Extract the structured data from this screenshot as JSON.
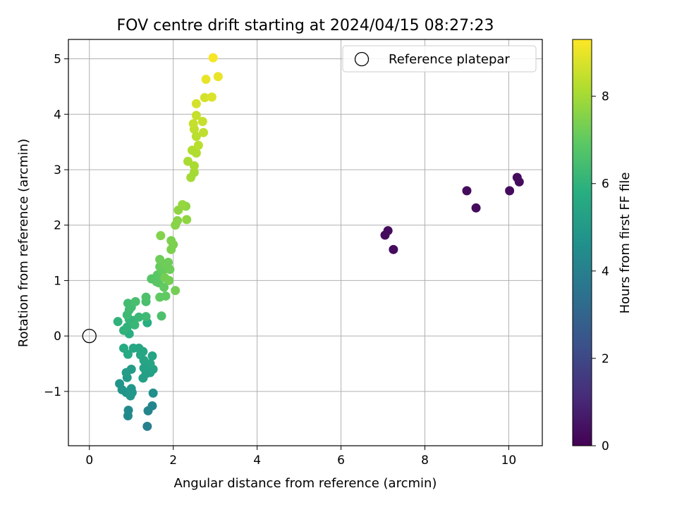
{
  "chart_data": {
    "type": "scatter",
    "title": "FOV centre drift starting at 2024/04/15 08:27:23",
    "xlabel": "Angular distance from reference (arcmin)",
    "ylabel": "Rotation from reference (arcmin)",
    "xlim": [
      -0.5,
      10.8
    ],
    "ylim": [
      -1.98,
      5.35
    ],
    "xticks": [
      0,
      2,
      4,
      6,
      8,
      10
    ],
    "yticks": [
      -1,
      0,
      1,
      2,
      3,
      4,
      5
    ],
    "grid": true,
    "legend": {
      "position": "top-right",
      "entries": [
        "Reference platepar"
      ]
    },
    "reference_point": {
      "x": 0,
      "y": 0
    },
    "colorbar": {
      "label": "Hours from first FF file",
      "colormap": "viridis",
      "range": [
        0,
        9.3
      ],
      "ticks": [
        0,
        2,
        4,
        6,
        8
      ]
    },
    "points": [
      {
        "x": 7.05,
        "y": 1.82,
        "c": 0.3
      },
      {
        "x": 7.12,
        "y": 1.9,
        "c": 0.3
      },
      {
        "x": 7.25,
        "y": 1.56,
        "c": 0.3
      },
      {
        "x": 9.0,
        "y": 2.62,
        "c": 0.3
      },
      {
        "x": 9.22,
        "y": 2.31,
        "c": 0.3
      },
      {
        "x": 10.02,
        "y": 2.62,
        "c": 0.3
      },
      {
        "x": 10.2,
        "y": 2.86,
        "c": 0.3
      },
      {
        "x": 10.25,
        "y": 2.78,
        "c": 0.3
      },
      {
        "x": 1.38,
        "y": -1.63,
        "c": 4.0
      },
      {
        "x": 1.4,
        "y": -1.35,
        "c": 4.2
      },
      {
        "x": 1.5,
        "y": -1.26,
        "c": 4.2
      },
      {
        "x": 0.93,
        "y": -1.34,
        "c": 4.4
      },
      {
        "x": 0.92,
        "y": -1.44,
        "c": 4.4
      },
      {
        "x": 1.52,
        "y": -1.03,
        "c": 4.6
      },
      {
        "x": 0.72,
        "y": -0.86,
        "c": 4.8
      },
      {
        "x": 0.78,
        "y": -0.97,
        "c": 4.8
      },
      {
        "x": 0.88,
        "y": -1.02,
        "c": 4.8
      },
      {
        "x": 0.98,
        "y": -1.08,
        "c": 4.9
      },
      {
        "x": 1.0,
        "y": -0.95,
        "c": 4.9
      },
      {
        "x": 1.02,
        "y": -1.02,
        "c": 4.9
      },
      {
        "x": 0.9,
        "y": -0.75,
        "c": 5.0
      },
      {
        "x": 0.88,
        "y": -0.66,
        "c": 5.1
      },
      {
        "x": 1.0,
        "y": -0.6,
        "c": 5.1
      },
      {
        "x": 1.28,
        "y": -0.76,
        "c": 5.2
      },
      {
        "x": 1.35,
        "y": -0.68,
        "c": 5.2
      },
      {
        "x": 1.45,
        "y": -0.66,
        "c": 5.2
      },
      {
        "x": 1.52,
        "y": -0.6,
        "c": 5.3
      },
      {
        "x": 1.3,
        "y": -0.58,
        "c": 5.3
      },
      {
        "x": 1.38,
        "y": -0.52,
        "c": 5.3
      },
      {
        "x": 1.45,
        "y": -0.5,
        "c": 5.4
      },
      {
        "x": 1.3,
        "y": -0.44,
        "c": 5.4
      },
      {
        "x": 1.5,
        "y": -0.36,
        "c": 5.4
      },
      {
        "x": 1.22,
        "y": -0.34,
        "c": 5.5
      },
      {
        "x": 1.28,
        "y": -0.28,
        "c": 5.5
      },
      {
        "x": 1.05,
        "y": -0.22,
        "c": 5.5
      },
      {
        "x": 1.18,
        "y": -0.22,
        "c": 5.5
      },
      {
        "x": 0.82,
        "y": -0.22,
        "c": 5.6
      },
      {
        "x": 0.92,
        "y": -0.33,
        "c": 5.6
      },
      {
        "x": 1.38,
        "y": 0.24,
        "c": 5.8
      },
      {
        "x": 0.95,
        "y": 0.04,
        "c": 5.8
      },
      {
        "x": 0.68,
        "y": 0.26,
        "c": 6.0
      },
      {
        "x": 0.82,
        "y": 0.1,
        "c": 6.0
      },
      {
        "x": 0.9,
        "y": 0.16,
        "c": 6.0
      },
      {
        "x": 0.95,
        "y": 0.3,
        "c": 6.1
      },
      {
        "x": 1.05,
        "y": 0.28,
        "c": 6.1
      },
      {
        "x": 1.08,
        "y": 0.2,
        "c": 6.2
      },
      {
        "x": 1.18,
        "y": 0.34,
        "c": 6.2
      },
      {
        "x": 1.35,
        "y": 0.35,
        "c": 6.3
      },
      {
        "x": 0.9,
        "y": 0.38,
        "c": 6.3
      },
      {
        "x": 0.95,
        "y": 0.47,
        "c": 6.3
      },
      {
        "x": 1.0,
        "y": 0.52,
        "c": 6.4
      },
      {
        "x": 0.92,
        "y": 0.59,
        "c": 6.4
      },
      {
        "x": 1.1,
        "y": 0.62,
        "c": 6.5
      },
      {
        "x": 1.35,
        "y": 0.62,
        "c": 6.5
      },
      {
        "x": 1.35,
        "y": 0.7,
        "c": 6.6
      },
      {
        "x": 1.72,
        "y": 0.36,
        "c": 6.6
      },
      {
        "x": 1.48,
        "y": 1.03,
        "c": 6.8
      },
      {
        "x": 1.6,
        "y": 0.98,
        "c": 6.8
      },
      {
        "x": 1.62,
        "y": 1.1,
        "c": 6.9
      },
      {
        "x": 1.72,
        "y": 1.08,
        "c": 6.9
      },
      {
        "x": 1.65,
        "y": 0.96,
        "c": 6.9
      },
      {
        "x": 1.78,
        "y": 0.88,
        "c": 7.0
      },
      {
        "x": 1.68,
        "y": 0.7,
        "c": 7.0
      },
      {
        "x": 1.82,
        "y": 0.72,
        "c": 7.0
      },
      {
        "x": 1.75,
        "y": 1.18,
        "c": 7.1
      },
      {
        "x": 1.68,
        "y": 1.25,
        "c": 7.1
      },
      {
        "x": 1.82,
        "y": 1.22,
        "c": 7.1
      },
      {
        "x": 1.92,
        "y": 1.2,
        "c": 7.2
      },
      {
        "x": 1.68,
        "y": 1.38,
        "c": 7.2
      },
      {
        "x": 1.78,
        "y": 1.3,
        "c": 7.2
      },
      {
        "x": 1.88,
        "y": 1.33,
        "c": 7.2
      },
      {
        "x": 1.8,
        "y": 1.05,
        "c": 7.3
      },
      {
        "x": 1.9,
        "y": 1.0,
        "c": 7.3
      },
      {
        "x": 2.05,
        "y": 0.82,
        "c": 7.3
      },
      {
        "x": 1.95,
        "y": 1.56,
        "c": 7.4
      },
      {
        "x": 2.0,
        "y": 1.65,
        "c": 7.4
      },
      {
        "x": 1.95,
        "y": 1.72,
        "c": 7.4
      },
      {
        "x": 1.7,
        "y": 1.81,
        "c": 7.5
      },
      {
        "x": 2.05,
        "y": 2.0,
        "c": 7.6
      },
      {
        "x": 2.1,
        "y": 2.08,
        "c": 7.6
      },
      {
        "x": 2.12,
        "y": 2.27,
        "c": 7.7
      },
      {
        "x": 2.32,
        "y": 2.1,
        "c": 7.7
      },
      {
        "x": 2.3,
        "y": 2.34,
        "c": 7.7
      },
      {
        "x": 2.22,
        "y": 2.37,
        "c": 7.8
      },
      {
        "x": 2.42,
        "y": 2.86,
        "c": 8.0
      },
      {
        "x": 2.5,
        "y": 2.95,
        "c": 8.0
      },
      {
        "x": 2.5,
        "y": 3.07,
        "c": 8.1
      },
      {
        "x": 2.35,
        "y": 3.15,
        "c": 8.1
      },
      {
        "x": 2.45,
        "y": 3.35,
        "c": 8.2
      },
      {
        "x": 2.55,
        "y": 3.3,
        "c": 8.2
      },
      {
        "x": 2.6,
        "y": 3.44,
        "c": 8.3
      },
      {
        "x": 2.55,
        "y": 3.6,
        "c": 8.3
      },
      {
        "x": 2.72,
        "y": 3.67,
        "c": 8.4
      },
      {
        "x": 2.5,
        "y": 3.73,
        "c": 8.4
      },
      {
        "x": 2.48,
        "y": 3.83,
        "c": 8.5
      },
      {
        "x": 2.55,
        "y": 3.98,
        "c": 8.5
      },
      {
        "x": 2.7,
        "y": 3.87,
        "c": 8.5
      },
      {
        "x": 2.55,
        "y": 4.19,
        "c": 8.7
      },
      {
        "x": 2.75,
        "y": 4.3,
        "c": 8.7
      },
      {
        "x": 2.92,
        "y": 4.31,
        "c": 8.8
      },
      {
        "x": 2.78,
        "y": 4.63,
        "c": 9.0
      },
      {
        "x": 3.07,
        "y": 4.68,
        "c": 9.0
      },
      {
        "x": 2.95,
        "y": 5.02,
        "c": 9.2
      }
    ]
  }
}
